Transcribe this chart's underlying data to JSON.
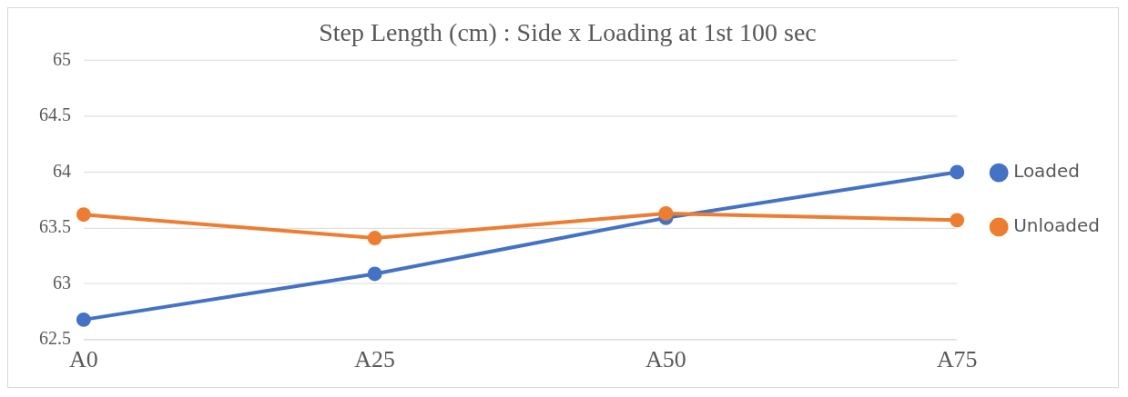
{
  "chart_data": {
    "type": "line",
    "title": "Step Length (cm) : Side x Loading at 1st 100 sec",
    "categories": [
      "A0",
      "A25",
      "A50",
      "A75"
    ],
    "series": [
      {
        "name": "Loaded",
        "color": "#4472c4",
        "values": [
          62.68,
          63.09,
          63.59,
          64.0
        ]
      },
      {
        "name": "Unloaded",
        "color": "#ed7d31",
        "values": [
          63.62,
          63.41,
          63.63,
          63.57
        ]
      }
    ],
    "ylim": [
      62.5,
      65
    ],
    "yticks": [
      62.5,
      63,
      63.5,
      64,
      64.5,
      65
    ],
    "grid": "y",
    "legend": "right",
    "marker": "circle",
    "line_style": "solid"
  }
}
